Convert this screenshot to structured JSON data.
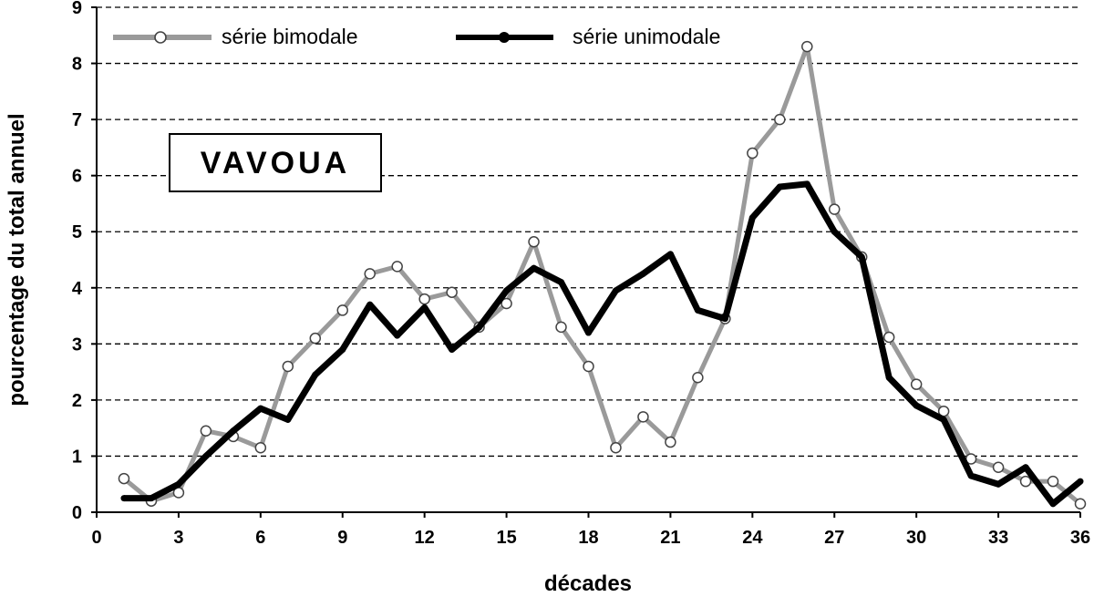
{
  "chart_data": {
    "type": "line",
    "title": "",
    "annotation": "VAVOUA",
    "xlabel": "décades",
    "ylabel": "pourcentage du total annuel",
    "xlim": [
      0,
      36
    ],
    "ylim": [
      0,
      9
    ],
    "x_ticks": [
      "0",
      "3",
      "6",
      "9",
      "12",
      "15",
      "18",
      "21",
      "24",
      "27",
      "30",
      "33",
      "36"
    ],
    "y_ticks": [
      "0",
      "1",
      "2",
      "3",
      "4",
      "5",
      "6",
      "7",
      "8",
      "9"
    ],
    "grid": "horizontal dashed",
    "legend_placement": "top",
    "x": [
      1,
      2,
      3,
      4,
      5,
      6,
      7,
      8,
      9,
      10,
      11,
      12,
      13,
      14,
      15,
      16,
      17,
      18,
      19,
      20,
      21,
      22,
      23,
      24,
      25,
      26,
      27,
      28,
      29,
      30,
      31,
      32,
      33,
      34,
      35,
      36
    ],
    "series": [
      {
        "name": "série bimodale",
        "color": "#9a9a9a",
        "marker": "open-circle",
        "values": [
          0.6,
          0.2,
          0.35,
          1.45,
          1.35,
          1.15,
          2.6,
          3.1,
          3.6,
          4.25,
          4.38,
          3.8,
          3.92,
          3.3,
          3.72,
          4.82,
          3.3,
          2.6,
          1.15,
          1.7,
          1.25,
          2.4,
          3.45,
          6.4,
          7.0,
          8.3,
          5.4,
          4.55,
          3.12,
          2.28,
          1.8,
          0.95,
          0.8,
          0.55,
          0.55,
          0.15
        ]
      },
      {
        "name": "série unimodale",
        "color": "#000000",
        "marker": "filled-circle",
        "values": [
          0.25,
          0.25,
          0.5,
          1.0,
          1.45,
          1.85,
          1.65,
          2.45,
          2.9,
          3.7,
          3.15,
          3.65,
          2.9,
          3.3,
          3.95,
          4.35,
          4.1,
          3.2,
          3.95,
          4.25,
          4.6,
          3.6,
          3.45,
          5.25,
          5.8,
          5.85,
          5.0,
          4.55,
          2.4,
          1.9,
          1.65,
          0.65,
          0.5,
          0.8,
          0.15,
          0.55
        ]
      }
    ]
  }
}
